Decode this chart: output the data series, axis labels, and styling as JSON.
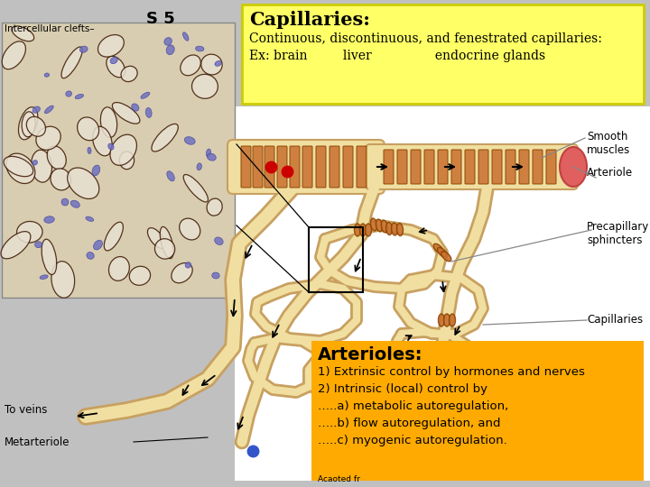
{
  "bg_color": "#ffffff",
  "outer_bg": "#c0c0c0",
  "slide_label": "S 5",
  "top_box": {
    "title": "Capillaries:",
    "line1": "Continuous, discontinuous, and fenestrated capillaries:",
    "line2": "Ex: brain         liver                endocrine glands",
    "bg": "#ffff66",
    "border": "#cccc00",
    "title_size": 15,
    "body_size": 10
  },
  "bottom_box": {
    "title": "Arterioles:",
    "lines": [
      "1) Extrinsic control by hormones and nerves",
      "2) Intrinsic (local) control by",
      "…..a) metabolic autoregulation,",
      "…..b) flow autoregulation, and",
      "…..c) myogenic autoregulation."
    ],
    "bg": "#ffaa00",
    "title_size": 14,
    "body_size": 9.5
  },
  "vessel_fill": "#f0dfa0",
  "vessel_edge": "#c8a060",
  "vessel_ring": "#c87030",
  "mic_bg": "#d8cdb0",
  "labels": {
    "intercellular_clefts": "Intercellular clefts–",
    "to_veins": "To veins",
    "metarteriole": "Metarteriole",
    "smooth_muscles": "Smooth\nmuscles",
    "arteriole": "Arteriole",
    "precapillary_sphincters": "Precapillary\nsphincters",
    "capillaries": "Capillaries",
    "adapted": "Acaoted fr"
  }
}
